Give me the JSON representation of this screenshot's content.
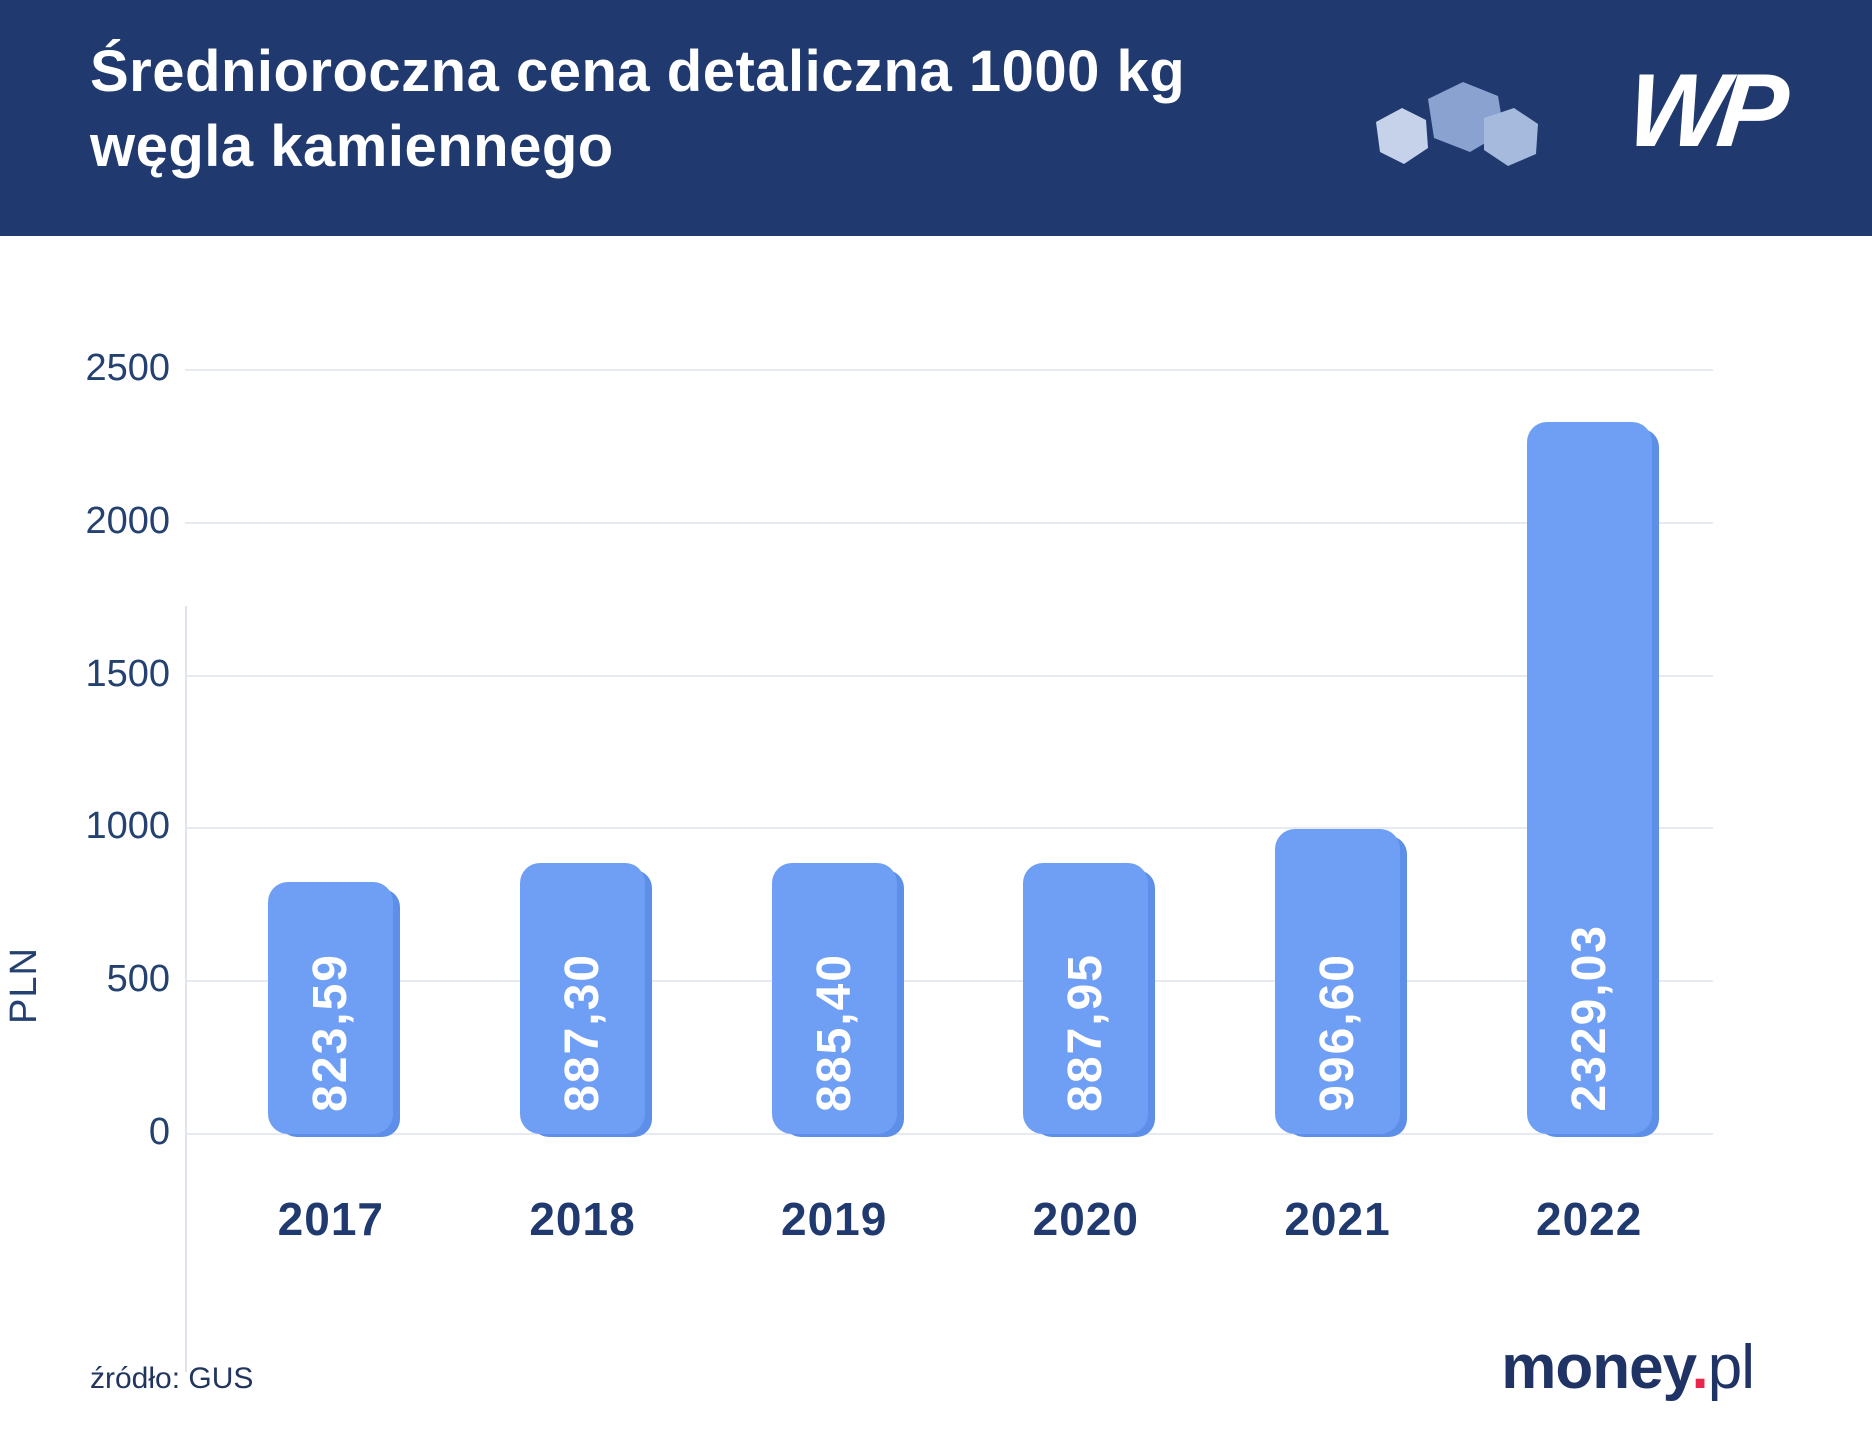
{
  "header": {
    "title_line1": "Średnioroczna cena detaliczna 1000 kg",
    "title_line2": "węgla kamiennego",
    "wp_logo_text": "WP",
    "bg_color": "#203a6f"
  },
  "chart_data": {
    "type": "bar",
    "title": "Średnioroczna cena detaliczna 1000 kg węgla kamiennego",
    "categories": [
      "2017",
      "2018",
      "2019",
      "2020",
      "2021",
      "2022"
    ],
    "values": [
      823.59,
      887.3,
      885.4,
      887.95,
      996.6,
      2329.03
    ],
    "value_labels": [
      "823,59",
      "887,30",
      "885,40",
      "887,95",
      "996,60",
      "2329,03"
    ],
    "xlabel": "",
    "ylabel": "PLN",
    "ylim": [
      0,
      2500
    ],
    "yticks": [
      0,
      500,
      1000,
      1500,
      2000,
      2500
    ],
    "grid": true,
    "legend": "none",
    "bar_color": "#6f9ff5",
    "bar_shadow_color": "#5e8fe8",
    "label_color": "#ffffff",
    "axis_text_color": "#24416f"
  },
  "footer": {
    "source": "źródło: GUS",
    "brand_money": "money",
    "brand_dot": ".",
    "brand_pl": "pl"
  }
}
